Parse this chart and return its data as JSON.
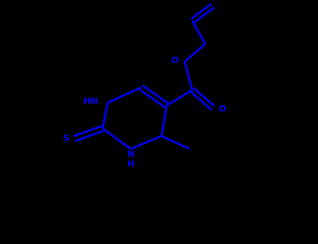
{
  "bg_color": "#000000",
  "line_color": "#0000EE",
  "line_width": 2.2,
  "font_size": 9.5,
  "fig_width": 4.55,
  "fig_height": 3.5,
  "dpi": 100,
  "xlim": [
    -1.0,
    8.0
  ],
  "ylim": [
    -1.0,
    8.5
  ]
}
